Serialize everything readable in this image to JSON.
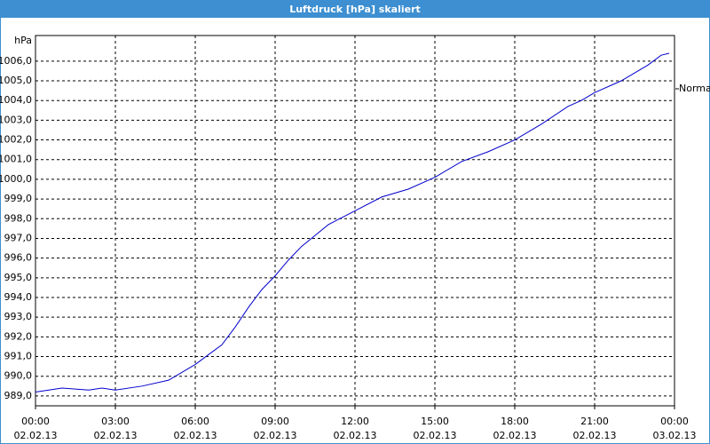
{
  "chart_data": {
    "type": "line",
    "title": "Luftdruck [hPa] skaliert",
    "y_label": "hPa",
    "x": [
      0,
      1,
      2,
      2.5,
      3,
      4,
      5,
      6,
      6.5,
      7,
      7.5,
      8,
      8.5,
      9,
      9.5,
      10,
      11,
      12,
      13,
      14,
      15,
      16,
      17,
      18,
      19,
      20,
      20.5,
      21,
      22,
      23,
      23.5,
      23.8
    ],
    "series": [
      {
        "name": "Normal",
        "color": "#0000cc",
        "values": [
          989.2,
          989.4,
          989.3,
          989.4,
          989.3,
          989.5,
          989.8,
          990.6,
          991.1,
          991.6,
          992.5,
          993.5,
          994.4,
          995.1,
          995.9,
          996.6,
          997.7,
          998.4,
          999.1,
          999.5,
          1000.1,
          1000.9,
          1001.4,
          1002.0,
          1002.8,
          1003.7,
          1004.0,
          1004.4,
          1005.0,
          1005.8,
          1006.3,
          1006.4
        ]
      }
    ],
    "xlim": [
      0,
      24
    ],
    "xticks": [
      {
        "value": 0,
        "label": "00:00",
        "date": "02.02.13"
      },
      {
        "value": 3,
        "label": "03:00",
        "date": "02.02.13"
      },
      {
        "value": 6,
        "label": "06:00",
        "date": "02.02.13"
      },
      {
        "value": 9,
        "label": "09:00",
        "date": "02.02.13"
      },
      {
        "value": 12,
        "label": "12:00",
        "date": "02.02.13"
      },
      {
        "value": 15,
        "label": "15:00",
        "date": "02.02.13"
      },
      {
        "value": 18,
        "label": "18:00",
        "date": "02.02.13"
      },
      {
        "value": 21,
        "label": "21:00",
        "date": "02.02.13"
      },
      {
        "value": 24,
        "label": "00:00",
        "date": "03.02.13"
      }
    ],
    "ylim": [
      988.5,
      1007.3
    ],
    "yticks": [
      {
        "value": 989,
        "label": "989,0"
      },
      {
        "value": 990,
        "label": "990,0"
      },
      {
        "value": 991,
        "label": "991,0"
      },
      {
        "value": 992,
        "label": "992,0"
      },
      {
        "value": 993,
        "label": "993,0"
      },
      {
        "value": 994,
        "label": "994,0"
      },
      {
        "value": 995,
        "label": "995,0"
      },
      {
        "value": 996,
        "label": "996,0"
      },
      {
        "value": 997,
        "label": "997,0"
      },
      {
        "value": 998,
        "label": "998,0"
      },
      {
        "value": 999,
        "label": "999,0"
      },
      {
        "value": 1000,
        "label": "1000,0"
      },
      {
        "value": 1001,
        "label": "1001,0"
      },
      {
        "value": 1002,
        "label": "1002,0"
      },
      {
        "value": 1003,
        "label": "1003,0"
      },
      {
        "value": 1004,
        "label": "1004,0"
      },
      {
        "value": 1005,
        "label": "1005,0"
      },
      {
        "value": 1006,
        "label": "1006,0"
      }
    ],
    "grid": true,
    "legend": "right"
  }
}
